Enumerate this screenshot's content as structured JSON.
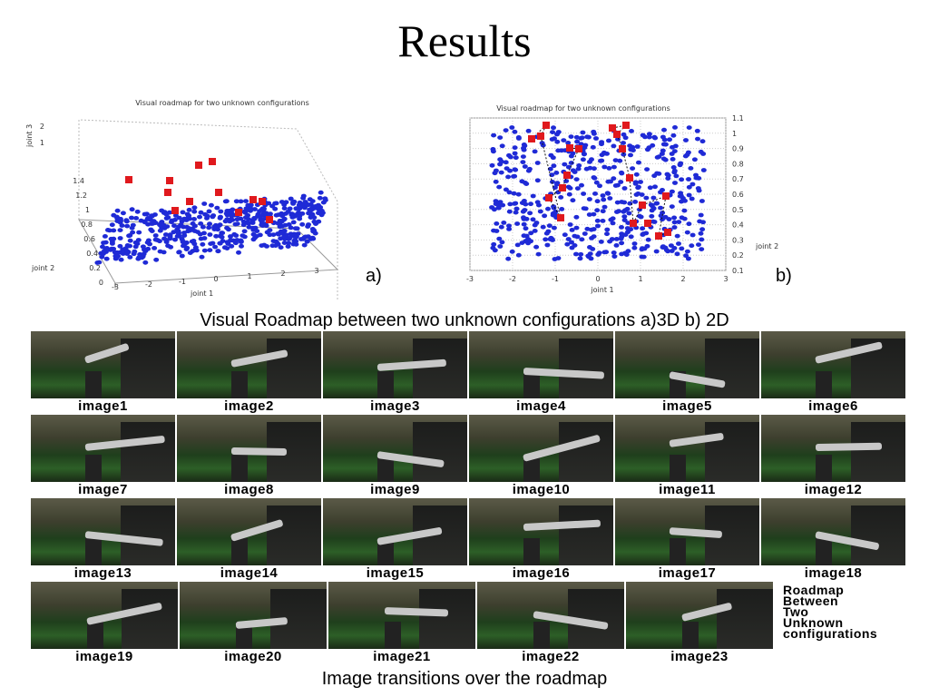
{
  "slide": {
    "title": "Results",
    "panel_a_label": "a)",
    "panel_b_label": "b)",
    "roadmap_caption": "Visual Roadmap between two unknown configurations  a)3D  b) 2D",
    "transitions_caption": "Image transitions over the roadmap",
    "grid_note": "Roadmap\nBetween\nTwo\nUnknown\nconfigurations"
  },
  "plot3d": {
    "title": "Visual roadmap for two unknown configurations",
    "xlabel": "joint 1",
    "ylabel": "joint 2",
    "zlabel": "joint 3",
    "x_ticks": [
      "-3",
      "-2",
      "-1",
      "0",
      "1",
      "2",
      "3"
    ],
    "y_ticks": [
      "0",
      "0.2",
      "0.4",
      "0.6",
      "0.8",
      "1",
      "1.2",
      "1.4"
    ],
    "z_ticks": [
      "2",
      "1"
    ],
    "colors": {
      "samples": "#1f2ad6",
      "roadmap": "#e0191d"
    }
  },
  "plot2d": {
    "title": "Visual roadmap for two unknown configurations",
    "xlabel": "joint 1",
    "ylabel": "joint 2",
    "x_ticks": [
      "-3",
      "-2",
      "-1",
      "0",
      "1",
      "2",
      "3"
    ],
    "y_ticks": [
      "1.1",
      "1",
      "0.9",
      "0.8",
      "0.7",
      "0.6",
      "0.5",
      "0.4",
      "0.3",
      "0.2",
      "0.1"
    ],
    "colors": {
      "samples": "#1f2ad6",
      "roadmap": "#e0191d"
    }
  },
  "frames": {
    "labels": [
      "image1",
      "image2",
      "image3",
      "image4",
      "image5",
      "image6",
      "image7",
      "image8",
      "image9",
      "image10",
      "image11",
      "image12",
      "image13",
      "image14",
      "image15",
      "image16",
      "image17",
      "image18",
      "image19",
      "image20",
      "image21",
      "image22",
      "image23"
    ]
  }
}
